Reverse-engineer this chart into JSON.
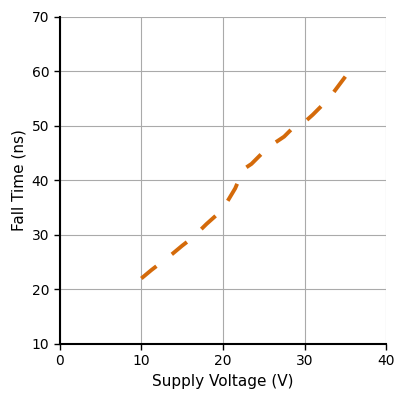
{
  "xlabel": "Supply Voltage (V)",
  "ylabel": "Fall Time (ns)",
  "xlim": [
    0,
    40
  ],
  "ylim": [
    10,
    70
  ],
  "xticks": [
    0,
    10,
    20,
    30,
    40
  ],
  "yticks": [
    10,
    20,
    30,
    40,
    50,
    60,
    70
  ],
  "line_color": "#D46A0A",
  "line_width": 2.8,
  "x_data": [
    10.0,
    11.2,
    12.5,
    13.8,
    15.0,
    16.3,
    18.0,
    19.5,
    20.5,
    21.5,
    22.5,
    23.5,
    24.5,
    25.5,
    26.5,
    27.5,
    28.5,
    29.5,
    31.0,
    32.0,
    33.0,
    34.0,
    35.0
  ],
  "y_data": [
    22.0,
    23.5,
    25.0,
    26.5,
    28.0,
    29.5,
    32.0,
    34.0,
    36.0,
    38.5,
    42.0,
    43.0,
    44.5,
    46.0,
    47.0,
    48.0,
    49.5,
    50.0,
    52.0,
    53.5,
    55.0,
    57.0,
    59.0
  ],
  "grid_color": "#aaaaaa",
  "grid_linewidth": 0.8,
  "background_color": "#ffffff",
  "tick_fontsize": 10,
  "label_fontsize": 11,
  "dash_seq": [
    6,
    6
  ],
  "spine_linewidth": 1.5
}
